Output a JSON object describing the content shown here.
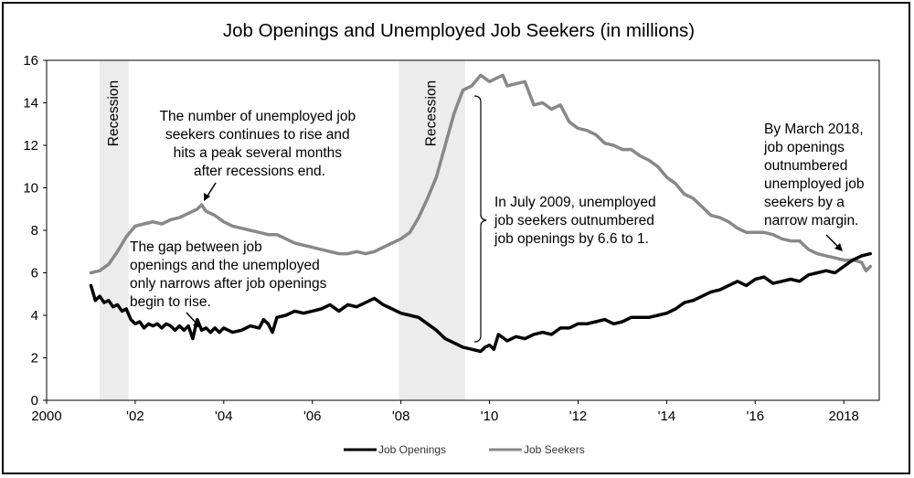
{
  "chart_data": {
    "type": "line",
    "title": "Job Openings and Unemployed Job Seekers (in millions)",
    "xlabel": "",
    "ylabel": "",
    "xlim": [
      2000,
      2018.8
    ],
    "ylim": [
      0,
      16
    ],
    "x_ticks": [
      {
        "value": 2000,
        "label": "2000"
      },
      {
        "value": 2002,
        "label": "'02"
      },
      {
        "value": 2004,
        "label": "'04"
      },
      {
        "value": 2006,
        "label": "'06"
      },
      {
        "value": 2008,
        "label": "'08"
      },
      {
        "value": 2010,
        "label": "'10"
      },
      {
        "value": 2012,
        "label": "'12"
      },
      {
        "value": 2014,
        "label": "'14"
      },
      {
        "value": 2016,
        "label": "'16"
      },
      {
        "value": 2018,
        "label": "2018"
      }
    ],
    "y_ticks": [
      {
        "value": 0,
        "label": "0"
      },
      {
        "value": 2,
        "label": "2"
      },
      {
        "value": 4,
        "label": "4"
      },
      {
        "value": 6,
        "label": "6"
      },
      {
        "value": 8,
        "label": "8"
      },
      {
        "value": 10,
        "label": "10"
      },
      {
        "value": 12,
        "label": "12"
      },
      {
        "value": 14,
        "label": "14"
      },
      {
        "value": 16,
        "label": "16"
      }
    ],
    "grid": false,
    "legend_position": "bottom",
    "recessions": [
      {
        "start": 2001.2,
        "end": 2001.85,
        "label": "Recession"
      },
      {
        "start": 2007.95,
        "end": 2009.45,
        "label": "Recession"
      }
    ],
    "series": [
      {
        "name": "Job Openings",
        "color": "#000000",
        "points": [
          [
            2001.0,
            5.4
          ],
          [
            2001.1,
            4.7
          ],
          [
            2001.2,
            4.9
          ],
          [
            2001.3,
            4.6
          ],
          [
            2001.4,
            4.7
          ],
          [
            2001.5,
            4.4
          ],
          [
            2001.6,
            4.5
          ],
          [
            2001.7,
            4.2
          ],
          [
            2001.8,
            4.3
          ],
          [
            2001.9,
            3.8
          ],
          [
            2002.0,
            3.6
          ],
          [
            2002.1,
            3.7
          ],
          [
            2002.2,
            3.4
          ],
          [
            2002.3,
            3.6
          ],
          [
            2002.4,
            3.5
          ],
          [
            2002.5,
            3.6
          ],
          [
            2002.6,
            3.4
          ],
          [
            2002.7,
            3.6
          ],
          [
            2002.8,
            3.5
          ],
          [
            2002.9,
            3.3
          ],
          [
            2003.0,
            3.5
          ],
          [
            2003.1,
            3.3
          ],
          [
            2003.2,
            3.5
          ],
          [
            2003.3,
            2.9
          ],
          [
            2003.4,
            3.8
          ],
          [
            2003.5,
            3.3
          ],
          [
            2003.6,
            3.4
          ],
          [
            2003.7,
            3.2
          ],
          [
            2003.8,
            3.4
          ],
          [
            2003.9,
            3.2
          ],
          [
            2004.0,
            3.4
          ],
          [
            2004.2,
            3.2
          ],
          [
            2004.4,
            3.3
          ],
          [
            2004.6,
            3.5
          ],
          [
            2004.8,
            3.4
          ],
          [
            2004.9,
            3.8
          ],
          [
            2005.0,
            3.6
          ],
          [
            2005.1,
            3.2
          ],
          [
            2005.2,
            3.9
          ],
          [
            2005.4,
            4.0
          ],
          [
            2005.6,
            4.2
          ],
          [
            2005.8,
            4.1
          ],
          [
            2006.0,
            4.2
          ],
          [
            2006.2,
            4.3
          ],
          [
            2006.4,
            4.5
          ],
          [
            2006.6,
            4.2
          ],
          [
            2006.8,
            4.5
          ],
          [
            2007.0,
            4.4
          ],
          [
            2007.2,
            4.6
          ],
          [
            2007.4,
            4.8
          ],
          [
            2007.6,
            4.5
          ],
          [
            2007.8,
            4.3
          ],
          [
            2008.0,
            4.1
          ],
          [
            2008.2,
            4.0
          ],
          [
            2008.4,
            3.9
          ],
          [
            2008.6,
            3.6
          ],
          [
            2008.8,
            3.3
          ],
          [
            2009.0,
            2.9
          ],
          [
            2009.2,
            2.7
          ],
          [
            2009.4,
            2.5
          ],
          [
            2009.6,
            2.4
          ],
          [
            2009.8,
            2.3
          ],
          [
            2009.9,
            2.5
          ],
          [
            2010.0,
            2.6
          ],
          [
            2010.1,
            2.4
          ],
          [
            2010.2,
            3.1
          ],
          [
            2010.4,
            2.8
          ],
          [
            2010.6,
            3.0
          ],
          [
            2010.8,
            2.9
          ],
          [
            2011.0,
            3.1
          ],
          [
            2011.2,
            3.2
          ],
          [
            2011.4,
            3.1
          ],
          [
            2011.6,
            3.4
          ],
          [
            2011.8,
            3.4
          ],
          [
            2012.0,
            3.6
          ],
          [
            2012.2,
            3.6
          ],
          [
            2012.4,
            3.7
          ],
          [
            2012.6,
            3.8
          ],
          [
            2012.8,
            3.6
          ],
          [
            2013.0,
            3.7
          ],
          [
            2013.2,
            3.9
          ],
          [
            2013.4,
            3.9
          ],
          [
            2013.6,
            3.9
          ],
          [
            2013.8,
            4.0
          ],
          [
            2014.0,
            4.1
          ],
          [
            2014.2,
            4.3
          ],
          [
            2014.4,
            4.6
          ],
          [
            2014.6,
            4.7
          ],
          [
            2014.8,
            4.9
          ],
          [
            2015.0,
            5.1
          ],
          [
            2015.2,
            5.2
          ],
          [
            2015.4,
            5.4
          ],
          [
            2015.6,
            5.6
          ],
          [
            2015.8,
            5.4
          ],
          [
            2016.0,
            5.7
          ],
          [
            2016.2,
            5.8
          ],
          [
            2016.4,
            5.5
          ],
          [
            2016.6,
            5.6
          ],
          [
            2016.8,
            5.7
          ],
          [
            2017.0,
            5.6
          ],
          [
            2017.2,
            5.9
          ],
          [
            2017.4,
            6.0
          ],
          [
            2017.6,
            6.1
          ],
          [
            2017.8,
            6.0
          ],
          [
            2018.0,
            6.3
          ],
          [
            2018.2,
            6.6
          ],
          [
            2018.4,
            6.8
          ],
          [
            2018.6,
            6.9
          ]
        ]
      },
      {
        "name": "Job Seekers",
        "color": "#888888",
        "points": [
          [
            2001.0,
            6.0
          ],
          [
            2001.2,
            6.1
          ],
          [
            2001.4,
            6.4
          ],
          [
            2001.6,
            7.0
          ],
          [
            2001.8,
            7.7
          ],
          [
            2002.0,
            8.2
          ],
          [
            2002.2,
            8.3
          ],
          [
            2002.4,
            8.4
          ],
          [
            2002.6,
            8.3
          ],
          [
            2002.8,
            8.5
          ],
          [
            2003.0,
            8.6
          ],
          [
            2003.2,
            8.8
          ],
          [
            2003.4,
            9.0
          ],
          [
            2003.5,
            9.2
          ],
          [
            2003.6,
            8.9
          ],
          [
            2003.8,
            8.7
          ],
          [
            2004.0,
            8.4
          ],
          [
            2004.2,
            8.2
          ],
          [
            2004.4,
            8.1
          ],
          [
            2004.6,
            8.0
          ],
          [
            2004.8,
            7.9
          ],
          [
            2005.0,
            7.8
          ],
          [
            2005.2,
            7.8
          ],
          [
            2005.4,
            7.6
          ],
          [
            2005.6,
            7.4
          ],
          [
            2005.8,
            7.3
          ],
          [
            2006.0,
            7.2
          ],
          [
            2006.2,
            7.1
          ],
          [
            2006.4,
            7.0
          ],
          [
            2006.6,
            6.9
          ],
          [
            2006.8,
            6.9
          ],
          [
            2007.0,
            7.0
          ],
          [
            2007.2,
            6.9
          ],
          [
            2007.4,
            7.0
          ],
          [
            2007.6,
            7.2
          ],
          [
            2007.8,
            7.4
          ],
          [
            2008.0,
            7.6
          ],
          [
            2008.2,
            7.9
          ],
          [
            2008.4,
            8.6
          ],
          [
            2008.6,
            9.5
          ],
          [
            2008.8,
            10.5
          ],
          [
            2009.0,
            12.0
          ],
          [
            2009.2,
            13.5
          ],
          [
            2009.4,
            14.6
          ],
          [
            2009.6,
            14.8
          ],
          [
            2009.8,
            15.3
          ],
          [
            2010.0,
            15.0
          ],
          [
            2010.2,
            15.2
          ],
          [
            2010.3,
            15.3
          ],
          [
            2010.4,
            14.8
          ],
          [
            2010.6,
            14.9
          ],
          [
            2010.8,
            15.0
          ],
          [
            2011.0,
            13.9
          ],
          [
            2011.2,
            14.0
          ],
          [
            2011.4,
            13.7
          ],
          [
            2011.6,
            13.9
          ],
          [
            2011.8,
            13.1
          ],
          [
            2012.0,
            12.8
          ],
          [
            2012.2,
            12.7
          ],
          [
            2012.4,
            12.5
          ],
          [
            2012.6,
            12.1
          ],
          [
            2012.8,
            12.0
          ],
          [
            2013.0,
            11.8
          ],
          [
            2013.2,
            11.8
          ],
          [
            2013.4,
            11.5
          ],
          [
            2013.6,
            11.3
          ],
          [
            2013.8,
            11.0
          ],
          [
            2014.0,
            10.5
          ],
          [
            2014.2,
            10.2
          ],
          [
            2014.4,
            9.7
          ],
          [
            2014.6,
            9.5
          ],
          [
            2014.8,
            9.1
          ],
          [
            2015.0,
            8.7
          ],
          [
            2015.2,
            8.6
          ],
          [
            2015.4,
            8.4
          ],
          [
            2015.6,
            8.1
          ],
          [
            2015.8,
            7.9
          ],
          [
            2016.0,
            7.9
          ],
          [
            2016.2,
            7.9
          ],
          [
            2016.4,
            7.8
          ],
          [
            2016.6,
            7.6
          ],
          [
            2016.8,
            7.5
          ],
          [
            2017.0,
            7.5
          ],
          [
            2017.2,
            7.1
          ],
          [
            2017.4,
            6.9
          ],
          [
            2017.6,
            6.8
          ],
          [
            2017.8,
            6.7
          ],
          [
            2018.0,
            6.6
          ],
          [
            2018.2,
            6.6
          ],
          [
            2018.4,
            6.5
          ],
          [
            2018.5,
            6.1
          ],
          [
            2018.6,
            6.3
          ]
        ]
      }
    ],
    "annotations": [
      {
        "lines": [
          "The number of unemployed job",
          "seekers continues to rise and",
          "hits a peak several months",
          "after recessions end."
        ]
      },
      {
        "lines": [
          "The gap between job",
          "openings and the unemployed",
          "only narrows after job openings",
          "begin to rise."
        ]
      },
      {
        "lines": [
          "In July 2009, unemployed",
          "job seekers outnumbered",
          "job openings by 6.6 to 1."
        ]
      },
      {
        "lines": [
          "By March 2018,",
          "job openings",
          "outnumbered",
          "unemployed job",
          "seekers by a",
          "narrow margin."
        ]
      }
    ]
  }
}
